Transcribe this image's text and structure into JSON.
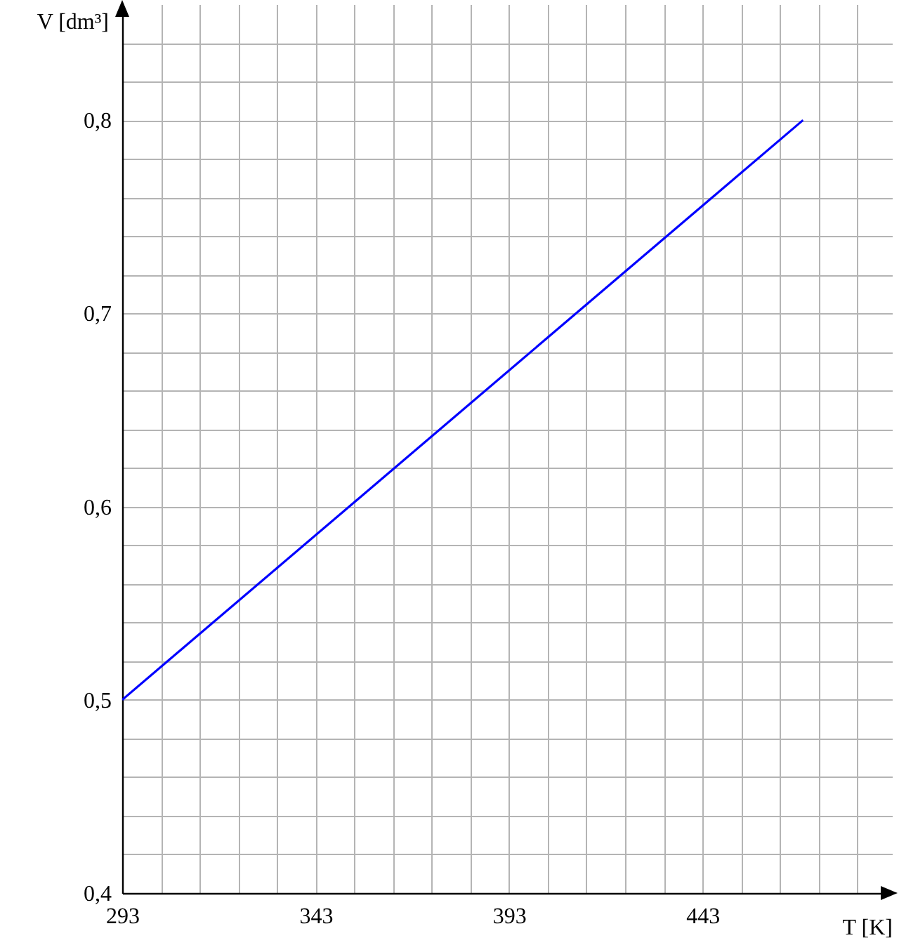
{
  "chart_data": {
    "type": "line",
    "xlabel": "T [K]",
    "ylabel": "V [dm³]",
    "x": [
      293,
      469
    ],
    "series": [
      {
        "color": "#0000ff",
        "values": [
          0.5,
          0.8
        ]
      }
    ],
    "xlim": [
      293,
      492
    ],
    "ylim": [
      0.4,
      0.86
    ],
    "xticks": [
      293,
      {
        "value": 303,
        "label": null
      },
      {
        "value": 313,
        "label": null
      },
      {
        "value": 323,
        "label": null
      },
      {
        "value": 333,
        "label": null
      },
      343,
      {
        "value": 353,
        "label": null
      },
      {
        "value": 363,
        "label": null
      },
      {
        "value": 373,
        "label": null
      },
      {
        "value": 383,
        "label": null
      },
      393,
      {
        "value": 403,
        "label": null
      },
      {
        "value": 413,
        "label": null
      },
      {
        "value": 423,
        "label": null
      },
      {
        "value": 433,
        "label": null
      },
      443,
      {
        "value": 453,
        "label": null
      },
      {
        "value": 463,
        "label": null
      },
      {
        "value": 473,
        "label": null
      },
      {
        "value": 483,
        "label": null
      }
    ],
    "yticks": [
      {
        "value": 0.4,
        "label": "0,4"
      },
      {
        "value": 0.42,
        "label": null
      },
      {
        "value": 0.44,
        "label": null
      },
      {
        "value": 0.46,
        "label": null
      },
      {
        "value": 0.48,
        "label": null
      },
      {
        "value": 0.5,
        "label": "0,5"
      },
      {
        "value": 0.52,
        "label": null
      },
      {
        "value": 0.54,
        "label": null
      },
      {
        "value": 0.56,
        "label": null
      },
      {
        "value": 0.58,
        "label": null
      },
      {
        "value": 0.6,
        "label": "0,6"
      },
      {
        "value": 0.62,
        "label": null
      },
      {
        "value": 0.64,
        "label": null
      },
      {
        "value": 0.66,
        "label": null
      },
      {
        "value": 0.68,
        "label": null
      },
      {
        "value": 0.7,
        "label": "0,7"
      },
      {
        "value": 0.72,
        "label": null
      },
      {
        "value": 0.74,
        "label": null
      },
      {
        "value": 0.76,
        "label": null
      },
      {
        "value": 0.78,
        "label": null
      },
      {
        "value": 0.8,
        "label": "0,8"
      },
      {
        "value": 0.82,
        "label": null
      },
      {
        "value": 0.84,
        "label": null
      }
    ],
    "grid": true
  }
}
